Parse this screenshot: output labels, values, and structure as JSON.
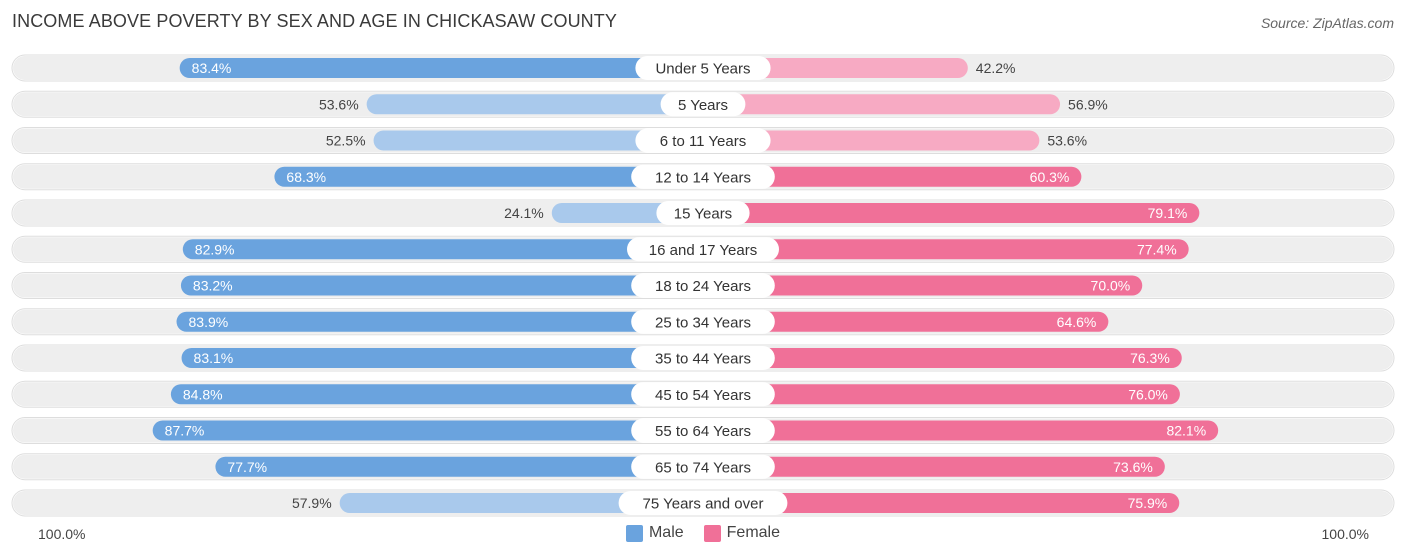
{
  "header": {
    "title": "INCOME ABOVE POVERTY BY SEX AND AGE IN CHICKASAW COUNTY",
    "source": "Source: ZipAtlas.com"
  },
  "axis": {
    "left_label": "100.0%",
    "right_label": "100.0%"
  },
  "legend": {
    "male_label": "Male",
    "female_label": "Female"
  },
  "colors": {
    "male_strong": "#6aa3de",
    "male_light": "#a9c9ec",
    "female_strong": "#f07098",
    "female_light": "#f7aac3",
    "track": "#eeeeee"
  },
  "chart_data": {
    "type": "bar",
    "orientation": "horizontal-diverging",
    "title": "INCOME ABOVE POVERTY BY SEX AND AGE IN CHICKASAW COUNTY",
    "xlim": [
      -100,
      100
    ],
    "categories": [
      "Under 5 Years",
      "5 Years",
      "6 to 11 Years",
      "12 to 14 Years",
      "15 Years",
      "16 and 17 Years",
      "18 to 24 Years",
      "25 to 34 Years",
      "35 to 44 Years",
      "45 to 54 Years",
      "55 to 64 Years",
      "65 to 74 Years",
      "75 Years and over"
    ],
    "series": [
      {
        "name": "Male",
        "values": [
          83.4,
          53.6,
          52.5,
          68.3,
          24.1,
          82.9,
          83.2,
          83.9,
          83.1,
          84.8,
          87.7,
          77.7,
          57.9
        ],
        "labels": [
          "83.4%",
          "53.6%",
          "52.5%",
          "68.3%",
          "24.1%",
          "82.9%",
          "83.2%",
          "83.9%",
          "83.1%",
          "84.8%",
          "87.7%",
          "77.7%",
          "57.9%"
        ]
      },
      {
        "name": "Female",
        "values": [
          42.2,
          56.9,
          53.6,
          60.3,
          79.1,
          77.4,
          70.0,
          64.6,
          76.3,
          76.0,
          82.1,
          73.6,
          75.9
        ],
        "labels": [
          "42.2%",
          "56.9%",
          "53.6%",
          "60.3%",
          "79.1%",
          "77.4%",
          "70.0%",
          "64.6%",
          "76.3%",
          "76.0%",
          "82.1%",
          "73.6%",
          "75.9%"
        ]
      }
    ]
  }
}
